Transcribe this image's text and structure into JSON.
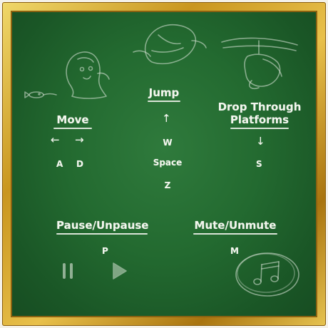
{
  "move": {
    "heading": "Move",
    "left_arrow": "←",
    "right_arrow": "→",
    "key_left": "A",
    "key_right": "D"
  },
  "jump": {
    "heading": "Jump",
    "up_arrow": "↑",
    "keys": [
      "W",
      "Space",
      "Z"
    ]
  },
  "drop": {
    "heading_line1": "Drop Through",
    "heading_line2": "Platforms",
    "down_arrow": "↓",
    "key": "S"
  },
  "pause": {
    "heading": "Pause/Unpause",
    "key": "P"
  },
  "mute": {
    "heading": "Mute/Unmute",
    "key": "M"
  },
  "colors": {
    "board": "#236a30",
    "frame": "#c9961f",
    "chalk": "#f3f6ee"
  },
  "icons": [
    "ghost-character-doodle",
    "fish-doodle",
    "flying-creature-doodle",
    "propeller-creature-doodle",
    "pause-icon",
    "play-icon",
    "music-notes-icon"
  ]
}
